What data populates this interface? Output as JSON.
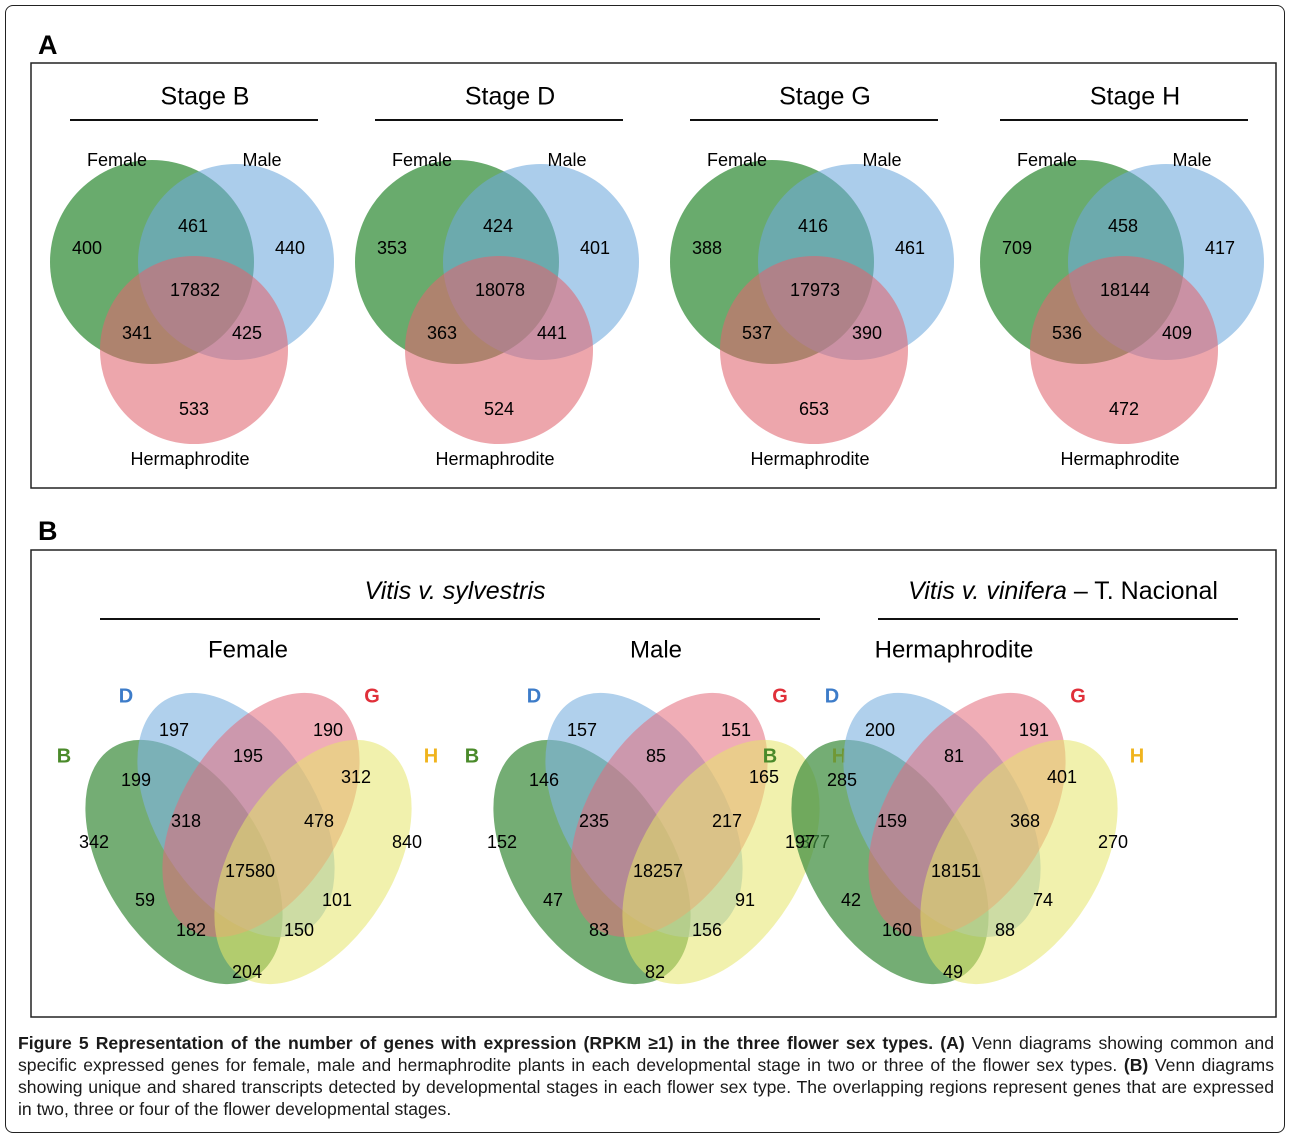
{
  "panel_a": {
    "label": "A",
    "labels": {
      "female": "Female",
      "male": "Male",
      "herm": "Hermaphrodite"
    },
    "diagrams": [
      {
        "title": "Stage B",
        "female": "400",
        "male": "440",
        "herm": "533",
        "fm": "461",
        "fh": "341",
        "mh": "425",
        "all": "17832"
      },
      {
        "title": "Stage D",
        "female": "353",
        "male": "401",
        "herm": "524",
        "fm": "424",
        "fh": "363",
        "mh": "441",
        "all": "18078"
      },
      {
        "title": "Stage G",
        "female": "388",
        "male": "461",
        "herm": "653",
        "fm": "416",
        "fh": "537",
        "mh": "390",
        "all": "17973"
      },
      {
        "title": "Stage H",
        "female": "709",
        "male": "417",
        "herm": "472",
        "fm": "458",
        "fh": "536",
        "mh": "409",
        "all": "18144"
      }
    ],
    "colors": {
      "female": "#2f8a35",
      "male": "#6fa8dc",
      "herm": "#e06670"
    }
  },
  "panel_b": {
    "label": "B",
    "group1_title": "Vitis v. sylvestris",
    "group2_title_italic": "Vitis v. vinifera",
    "group2_title_rest": " – T. Nacional",
    "set_labels": {
      "B": "B",
      "D": "D",
      "G": "G",
      "H": "H"
    },
    "set_colors": {
      "B": "#4a8a2a",
      "D": "#3d7cc9",
      "G": "#e0303a",
      "H": "#f0b41e"
    },
    "ellipse_colors": {
      "B": "#3e8e3e",
      "D": "#7fb3e0",
      "G": "#e46a7a",
      "H": "#e6e66a"
    },
    "diagrams": [
      {
        "title": "Female",
        "regions": {
          "D": "197",
          "DG": "195",
          "G": "190",
          "BD": "199",
          "GH": "312",
          "B": "342",
          "BDG": "318",
          "DGH": "478",
          "H": "840",
          "BDGH": "17580",
          "BG": "59",
          "DH": "101",
          "BGH": "182",
          "BDH": "150",
          "BH": "204"
        }
      },
      {
        "title": "Male",
        "regions": {
          "D": "157",
          "DG": "85",
          "G": "151",
          "BD": "146",
          "GH": "165",
          "B": "152",
          "BDG": "235",
          "DGH": "217",
          "H": "377",
          "BDGH": "18257",
          "BG": "47",
          "DH": "91",
          "BGH": "83",
          "BDH": "156",
          "BH": "82"
        }
      },
      {
        "title": "Hermaphrodite",
        "regions": {
          "D": "200",
          "DG": "81",
          "G": "191",
          "BD": "285",
          "GH": "401",
          "B": "197",
          "BDG": "159",
          "DGH": "368",
          "H": "270",
          "BDGH": "18151",
          "BG": "42",
          "DH": "74",
          "BGH": "160",
          "BDH": "88",
          "BH": "49"
        }
      }
    ]
  },
  "caption": {
    "fig_label": "Figure 5",
    "fig_title": " Representation of the number of genes with expression (RPKM ≥1) in the three flower sex types.",
    "a_label": " (A)",
    "a_text": " Venn diagrams showing common and specific expressed genes for female, male and hermaphrodite plants in each developmental stage in two or three of the flower sex types.",
    "b_label": " (B)",
    "b_text": " Venn diagrams showing unique and shared transcripts detected by developmental stages in each flower sex type. The overlapping regions represent genes that are expressed in two, three or four of the flower developmental stages."
  }
}
